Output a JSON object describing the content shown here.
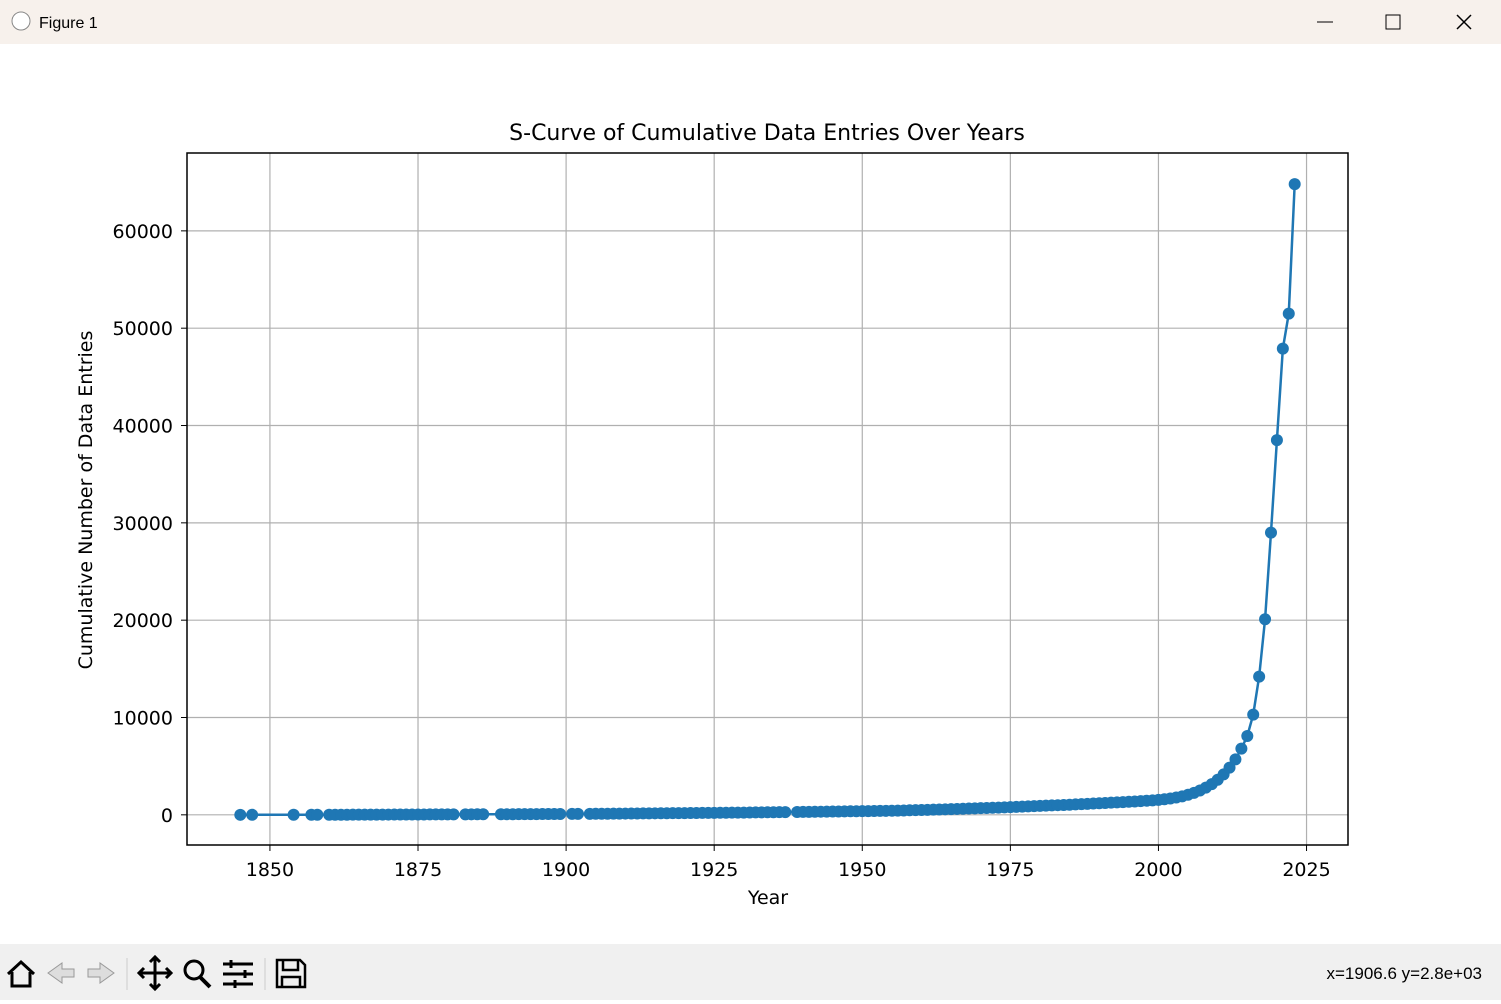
{
  "window": {
    "title": "Figure 1",
    "status": "x=1906.6 y=2.8e+03"
  },
  "chart_data": {
    "type": "line",
    "title": "S-Curve of Cumulative Data Entries Over Years",
    "x_label": "Year",
    "y_label": "Cumulative Number of Data Entries",
    "color": "#1f77b4",
    "grid": true,
    "markers": true,
    "xlim": [
      1836,
      2032
    ],
    "xticks": [
      1850,
      1875,
      1900,
      1925,
      1950,
      1975,
      2000,
      2025
    ],
    "ylim": [
      -3100,
      68000
    ],
    "yticks": [
      0,
      10000,
      20000,
      30000,
      40000,
      50000,
      60000
    ],
    "x": [
      1845,
      1847,
      1854,
      1857,
      1858,
      1860,
      1861,
      1862,
      1863,
      1864,
      1865,
      1866,
      1867,
      1868,
      1869,
      1870,
      1871,
      1872,
      1873,
      1874,
      1875,
      1876,
      1877,
      1878,
      1879,
      1880,
      1881,
      1883,
      1884,
      1885,
      1886,
      1889,
      1890,
      1891,
      1892,
      1893,
      1894,
      1895,
      1896,
      1897,
      1898,
      1899,
      1901,
      1902,
      1904,
      1905,
      1906,
      1907,
      1908,
      1909,
      1910,
      1911,
      1912,
      1913,
      1914,
      1915,
      1916,
      1917,
      1918,
      1919,
      1920,
      1921,
      1922,
      1923,
      1924,
      1925,
      1926,
      1927,
      1928,
      1929,
      1930,
      1931,
      1932,
      1933,
      1934,
      1935,
      1936,
      1937,
      1939,
      1940,
      1941,
      1942,
      1943,
      1944,
      1945,
      1946,
      1947,
      1948,
      1949,
      1950,
      1951,
      1952,
      1953,
      1954,
      1955,
      1956,
      1957,
      1958,
      1959,
      1960,
      1961,
      1962,
      1963,
      1964,
      1965,
      1966,
      1967,
      1968,
      1969,
      1970,
      1971,
      1972,
      1973,
      1974,
      1975,
      1976,
      1977,
      1978,
      1979,
      1980,
      1981,
      1982,
      1983,
      1984,
      1985,
      1986,
      1987,
      1988,
      1989,
      1990,
      1991,
      1992,
      1993,
      1994,
      1995,
      1996,
      1997,
      1998,
      1999,
      2000,
      2001,
      2002,
      2003,
      2004,
      2005,
      2006,
      2007,
      2008,
      2009,
      2010,
      2011,
      2012,
      2013,
      2014,
      2015,
      2016,
      2017,
      2018,
      2019,
      2020,
      2021,
      2022,
      2023
    ],
    "values": [
      1,
      2,
      3,
      4,
      5,
      7,
      9,
      11,
      13,
      15,
      17,
      19,
      21,
      23,
      25,
      27,
      29,
      31,
      33,
      35,
      37,
      39,
      41,
      43,
      45,
      47,
      49,
      51,
      53,
      55,
      57,
      59,
      62,
      65,
      68,
      71,
      74,
      77,
      80,
      83,
      86,
      89,
      92,
      96,
      100,
      105,
      110,
      115,
      120,
      125,
      130,
      135,
      140,
      145,
      150,
      155,
      160,
      165,
      170,
      175,
      180,
      185,
      190,
      195,
      200,
      205,
      210,
      215,
      220,
      225,
      232,
      239,
      246,
      253,
      260,
      267,
      274,
      281,
      290,
      298,
      306,
      314,
      322,
      330,
      338,
      346,
      354,
      362,
      370,
      378,
      386,
      394,
      402,
      410,
      420,
      435,
      450,
      465,
      480,
      495,
      512,
      530,
      548,
      566,
      585,
      605,
      625,
      645,
      665,
      685,
      705,
      725,
      745,
      765,
      790,
      815,
      840,
      865,
      890,
      915,
      940,
      965,
      990,
      1015,
      1040,
      1070,
      1100,
      1130,
      1160,
      1190,
      1220,
      1250,
      1280,
      1310,
      1340,
      1375,
      1410,
      1450,
      1490,
      1540,
      1600,
      1680,
      1780,
      1900,
      2060,
      2260,
      2500,
      2800,
      3150,
      3600,
      4150,
      4850,
      5700,
      6800,
      8100,
      10300,
      14200,
      20100,
      29000,
      38500,
      47900,
      51500,
      64800
    ]
  }
}
